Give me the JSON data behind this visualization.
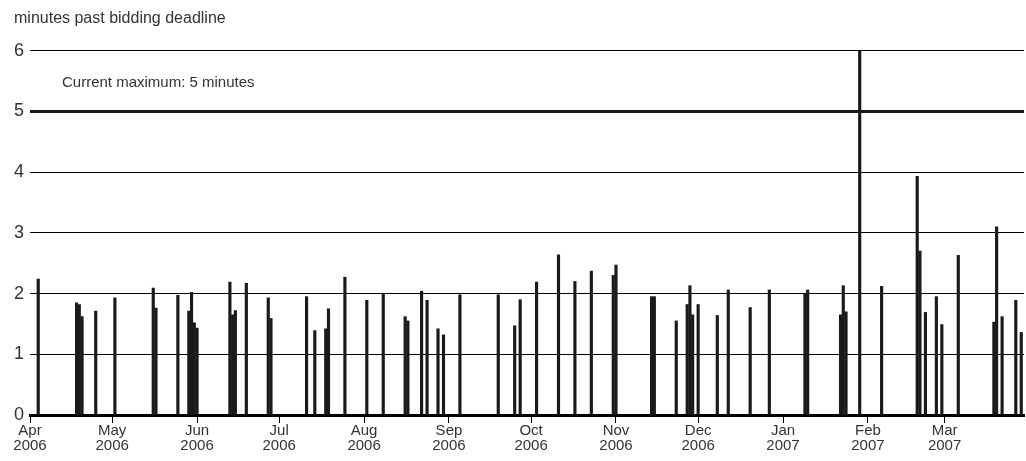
{
  "chart_data": {
    "type": "bar",
    "ylabel": "minutes past bidding deadline",
    "x": [
      "2006-04-04",
      "2006-04-18",
      "2006-04-19",
      "2006-04-20",
      "2006-04-25",
      "2006-05-02",
      "2006-05-16",
      "2006-05-17",
      "2006-05-25",
      "2006-05-29",
      "2006-05-30",
      "2006-05-31",
      "2006-06-01",
      "2006-06-13",
      "2006-06-14",
      "2006-06-15",
      "2006-06-19",
      "2006-06-27",
      "2006-06-28",
      "2006-07-11",
      "2006-07-14",
      "2006-07-18",
      "2006-07-19",
      "2006-07-25",
      "2006-08-02",
      "2006-08-08",
      "2006-08-16",
      "2006-08-17",
      "2006-08-22",
      "2006-08-24",
      "2006-08-28",
      "2006-08-30",
      "2006-09-05",
      "2006-09-19",
      "2006-09-25",
      "2006-09-27",
      "2006-10-03",
      "2006-10-11",
      "2006-10-17",
      "2006-10-23",
      "2006-10-31",
      "2006-11-01",
      "2006-11-14",
      "2006-11-15",
      "2006-11-23",
      "2006-11-27",
      "2006-11-28",
      "2006-11-29",
      "2006-12-01",
      "2006-12-08",
      "2006-12-12",
      "2006-12-20",
      "2006-12-27",
      "2007-01-09",
      "2007-01-10",
      "2007-01-22",
      "2007-01-23",
      "2007-01-24",
      "2007-01-29",
      "2007-02-06",
      "2007-02-19",
      "2007-02-20",
      "2007-02-22",
      "2007-02-26",
      "2007-02-28",
      "2007-03-06",
      "2007-03-19",
      "2007-03-20",
      "2007-03-22",
      "2007-03-27",
      "2007-03-29"
    ],
    "series": [
      {
        "color": "#1a1a1a",
        "values": [
          2.24,
          1.85,
          1.82,
          1.62,
          1.71,
          1.93,
          2.09,
          1.76,
          1.97,
          1.71,
          2.02,
          1.52,
          1.43,
          2.19,
          1.65,
          1.72,
          2.17,
          1.93,
          1.59,
          1.95,
          1.39,
          1.42,
          1.75,
          2.27,
          1.89,
          2.0,
          1.62,
          1.55,
          2.04,
          1.89,
          1.42,
          1.32,
          1.98,
          1.98,
          1.47,
          1.9,
          2.19,
          2.64,
          2.2,
          2.37,
          2.3,
          2.47,
          1.95,
          1.95,
          1.55,
          1.82,
          2.13,
          1.65,
          1.82,
          1.64,
          2.06,
          1.77,
          2.06,
          1.99,
          2.06,
          1.65,
          2.13,
          1.7,
          6,
          2.12,
          3.93,
          2.7,
          1.69,
          1.95,
          1.49,
          2.63,
          1.53,
          3.1,
          1.62,
          1.89,
          1.36
        ]
      }
    ],
    "xlim": [
      "2006-04-01",
      "2007-03-30"
    ],
    "xticks": [
      {
        "value": "2006-04-01",
        "label": "Apr 2006"
      },
      {
        "value": "2006-05-01",
        "label": "May 2006"
      },
      {
        "value": "2006-06-01",
        "label": "Jun 2006"
      },
      {
        "value": "2006-07-01",
        "label": "Jul 2006"
      },
      {
        "value": "2006-08-01",
        "label": "Aug 2006"
      },
      {
        "value": "2006-09-01",
        "label": "Sep 2006"
      },
      {
        "value": "2006-10-01",
        "label": "Oct 2006"
      },
      {
        "value": "2006-11-01",
        "label": "Nov 2006"
      },
      {
        "value": "2006-12-01",
        "label": "Dec 2006"
      },
      {
        "value": "2007-01-01",
        "label": "Jan 2007"
      },
      {
        "value": "2007-02-01",
        "label": "Feb 2007"
      },
      {
        "value": "2007-03-01",
        "label": "Mar 2007"
      }
    ],
    "ylim": [
      0,
      6
    ],
    "yticks": [
      0,
      1,
      2,
      3,
      4,
      5,
      6
    ],
    "grid": "y",
    "legend": false,
    "ref_lines": [
      {
        "axis": "y",
        "value": 5,
        "label": "Current maximum: 5 minutes",
        "color": "#1a1a1a"
      }
    ]
  }
}
